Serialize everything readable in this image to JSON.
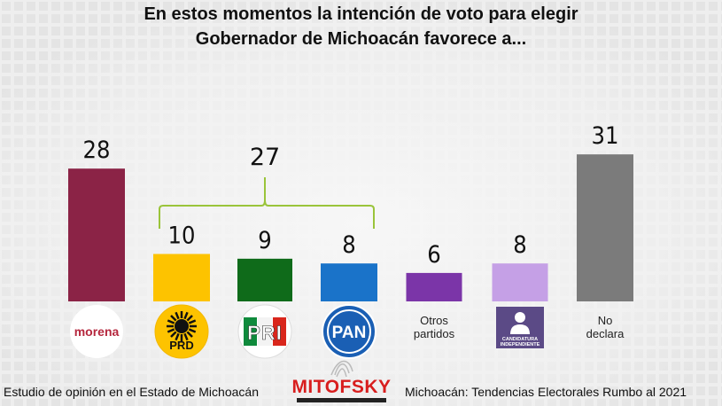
{
  "title_line1": "En estos momentos la intención de voto para elegir",
  "title_line2": "Gobernador de Michoacán favorece a...",
  "chart_data": {
    "type": "bar",
    "categories": [
      "morena",
      "PRD",
      "PRI",
      "PAN",
      "Otros partidos",
      "CANDIDATURA INDEPENDIENTE",
      "No declara"
    ],
    "values": [
      28,
      10,
      9,
      8,
      6,
      8,
      31
    ],
    "colors": [
      "#8b2346",
      "#fdc300",
      "#0f6b1a",
      "#1a73c9",
      "#7b35a8",
      "#c5a0e6",
      "#7b7b7b"
    ],
    "bracket": {
      "label": "27",
      "spans": [
        "PRD",
        "PRI",
        "PAN"
      ]
    },
    "ylim": [
      0,
      31
    ]
  },
  "logos": {
    "morena": "morena",
    "prd": "PRD",
    "pri": "PRI",
    "pan": "PAN",
    "independiente": [
      "CANDIDATURA",
      "INDEPENDIENTE"
    ]
  },
  "labels": {
    "otros": [
      "Otros",
      "partidos"
    ],
    "no_declara": [
      "No",
      "declara"
    ]
  },
  "footer": {
    "left": "Estudio de opinión en el Estado de Michoacán",
    "brand": "MITOFSKY",
    "right": "Michoacán: Tendencias Electorales Rumbo al 2021"
  }
}
